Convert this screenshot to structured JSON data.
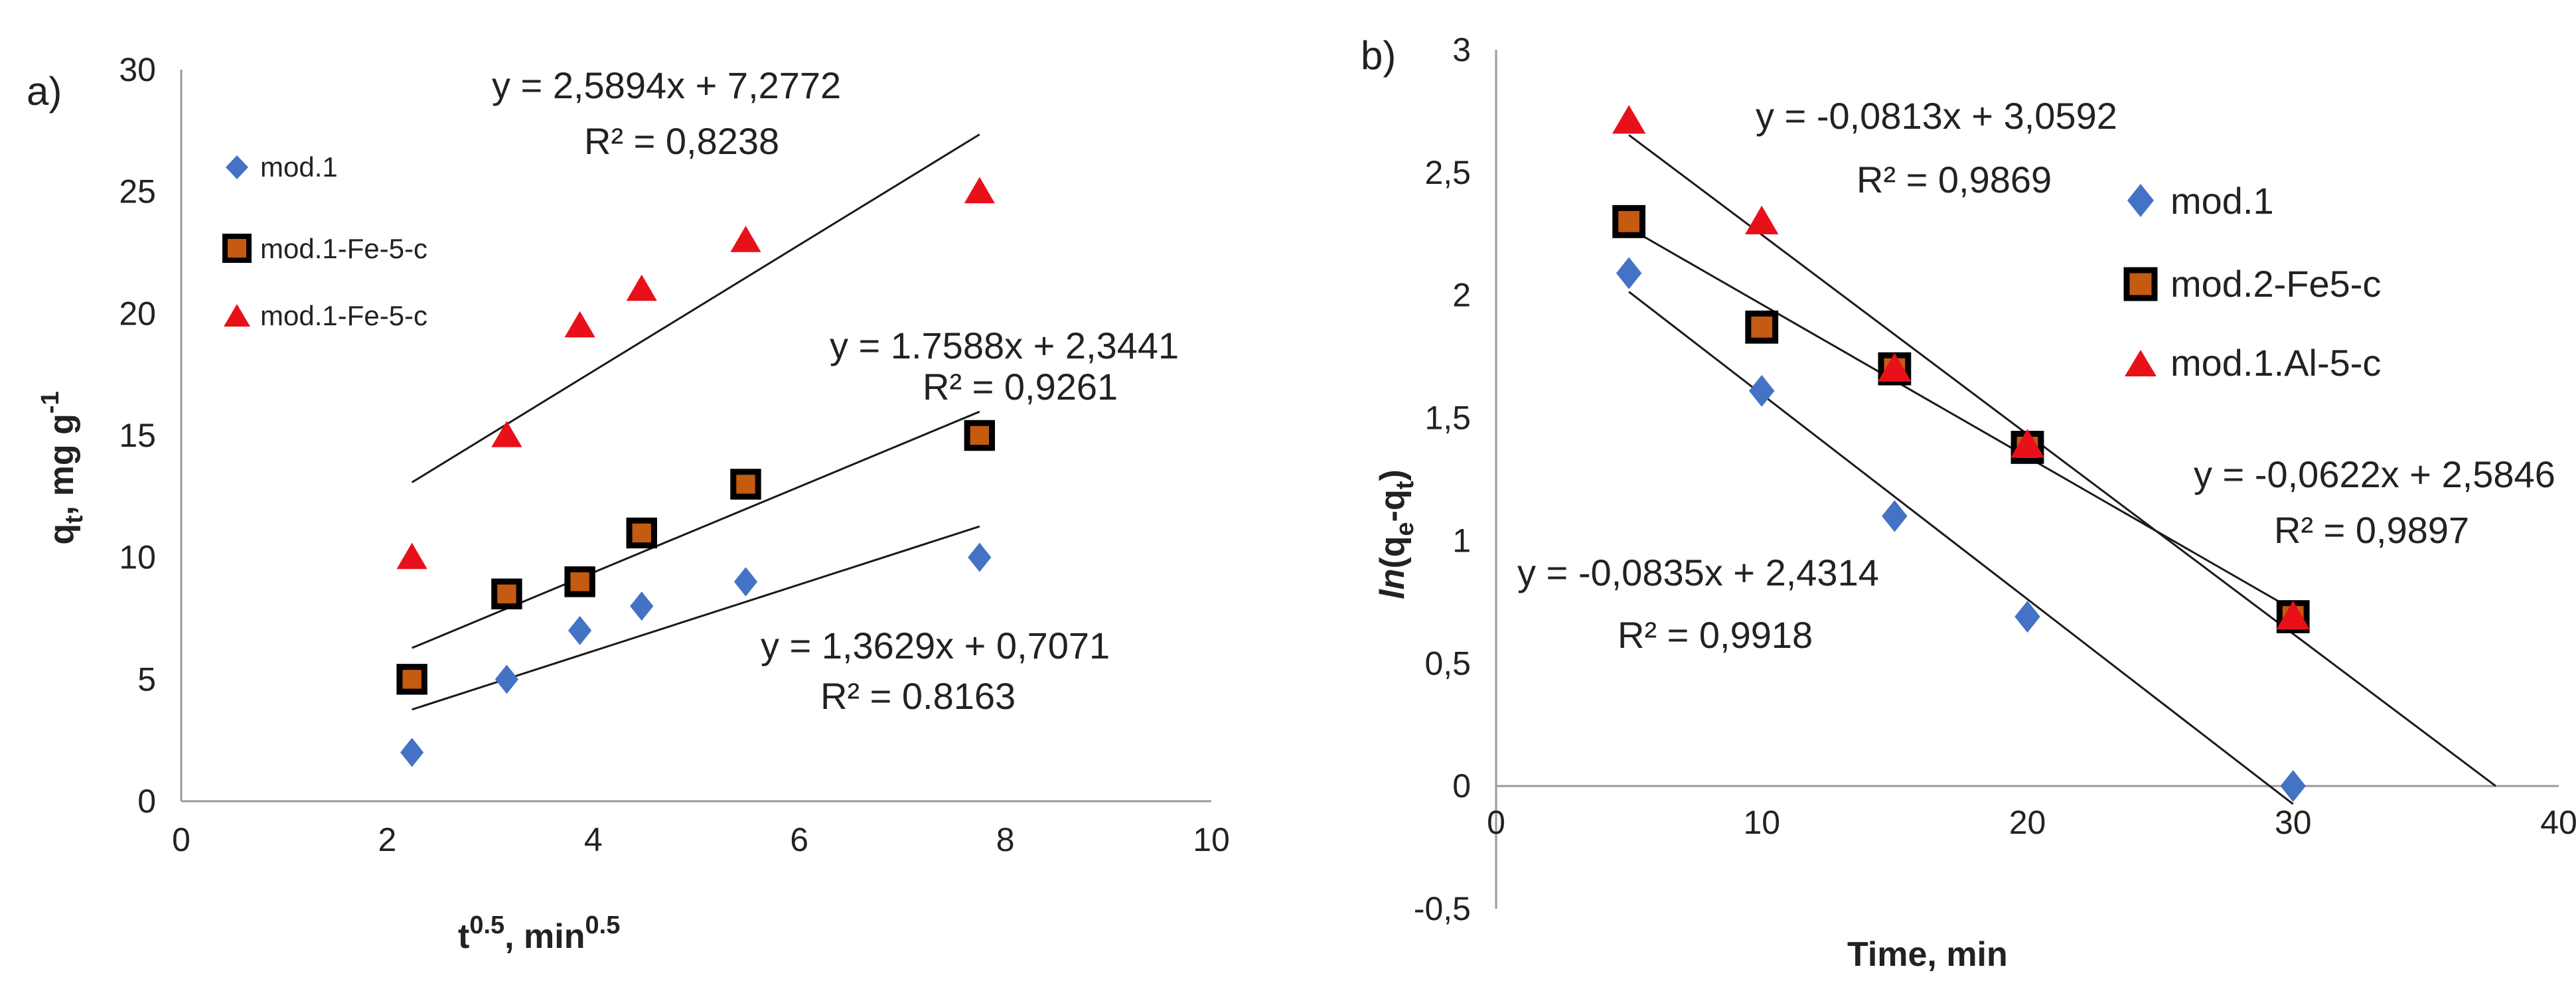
{
  "chart_data": [
    {
      "type": "scatter",
      "panel_label": "a)",
      "xlabel": {
        "main": "t",
        "sup1": "0.5",
        "mid": ", min",
        "sup2": "0.5"
      },
      "ylabel": {
        "main": "q",
        "sub": "t",
        "mid": ", mg g",
        "sup": "-1"
      },
      "xlim": [
        0,
        10
      ],
      "ylim": [
        0,
        30
      ],
      "xticks": [
        "0",
        "2",
        "4",
        "6",
        "8",
        "10"
      ],
      "yticks": [
        "0",
        "5",
        "10",
        "15",
        "20",
        "25",
        "30"
      ],
      "legend_position": "top-left",
      "series": [
        {
          "name": "mod.1",
          "marker": "diamond",
          "color": "#4472C4",
          "x": [
            2.24,
            3.16,
            3.87,
            4.47,
            5.48,
            7.75
          ],
          "y": [
            2,
            5,
            7,
            8,
            9,
            10
          ],
          "trend": {
            "slope": 1.3629,
            "intercept": 0.7071,
            "equation": "y = 1,3629x + 0,7071",
            "r2": "R² = 0.8163"
          }
        },
        {
          "name": "mod.1-Fe-5-c",
          "marker": "square",
          "color": "#000000",
          "fill": "#C55A11",
          "x": [
            2.24,
            3.16,
            3.87,
            4.47,
            5.48,
            7.75
          ],
          "y": [
            5,
            8.5,
            9,
            11,
            13,
            15
          ],
          "trend": {
            "slope": 1.7588,
            "intercept": 2.3441,
            "equation": "y = 1.7588x + 2,3441",
            "r2": "R² = 0,9261"
          }
        },
        {
          "name": "mod.1-Fe-5-c",
          "marker": "triangle",
          "color": "#E8111A",
          "x": [
            2.24,
            3.16,
            3.87,
            4.47,
            5.48,
            7.75
          ],
          "y": [
            10,
            15,
            19.5,
            21,
            23,
            25
          ],
          "trend": {
            "slope": 2.5894,
            "intercept": 7.2772,
            "equation": "y = 2,5894x + 7,2772",
            "r2": "R² = 0,8238"
          }
        }
      ]
    },
    {
      "type": "scatter",
      "panel_label": "b)",
      "xlabel": {
        "main": "Time, min"
      },
      "ylabel": {
        "pre": "ln",
        "open": "(q",
        "sub1": "e",
        "mid": "-q",
        "sub2": "t",
        "close": ")"
      },
      "xlim": [
        0,
        40
      ],
      "ylim": [
        -0.5,
        3
      ],
      "xticks": [
        "0",
        "10",
        "20",
        "30",
        "40"
      ],
      "yticks": [
        "-0,5",
        "0",
        "0,5",
        "1",
        "1,5",
        "2",
        "2,5",
        "3"
      ],
      "legend_position": "top-right",
      "series": [
        {
          "name": "mod.1",
          "marker": "diamond",
          "color": "#4472C4",
          "x": [
            5,
            10,
            15,
            20,
            30
          ],
          "y": [
            2.09,
            1.61,
            1.1,
            0.69,
            0
          ],
          "trend": {
            "slope": -0.0835,
            "intercept": 2.4314,
            "equation": "y = -0,0835x + 2,4314",
            "r2": "R² = 0,9918"
          }
        },
        {
          "name": "mod.2-Fe5-c",
          "marker": "square",
          "color": "#000000",
          "fill": "#C55A11",
          "x": [
            5,
            10,
            15,
            20,
            30
          ],
          "y": [
            2.3,
            1.87,
            1.7,
            1.38,
            0.69
          ],
          "trend": {
            "slope": -0.0622,
            "intercept": 2.5846,
            "equation": "y = -0,0622x + 2,5846",
            "r2": "R² = 0,9897"
          }
        },
        {
          "name": "mod.1.Al-5-c",
          "marker": "triangle",
          "color": "#E8111A",
          "x": [
            5,
            10,
            15,
            20,
            30
          ],
          "y": [
            2.71,
            2.3,
            1.7,
            1.39,
            0.69
          ],
          "trend": {
            "slope": -0.0813,
            "intercept": 3.0592,
            "equation": "y = -0,0813x + 3,0592",
            "r2": "R² = 0,9869"
          }
        }
      ]
    }
  ]
}
